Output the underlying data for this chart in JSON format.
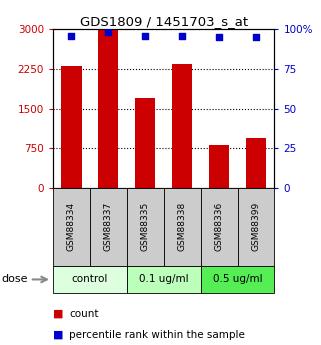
{
  "title": "GDS1809 / 1451703_s_at",
  "samples": [
    "GSM88334",
    "GSM88337",
    "GSM88335",
    "GSM88338",
    "GSM88336",
    "GSM88399"
  ],
  "counts": [
    2300,
    3000,
    1700,
    2350,
    820,
    950
  ],
  "percentiles": [
    96,
    98,
    96,
    96,
    95,
    95
  ],
  "dose_groups": [
    {
      "label": "control",
      "cols": [
        0,
        1
      ],
      "color": "#ddffdd"
    },
    {
      "label": "0.1 ug/ml",
      "cols": [
        2,
        3
      ],
      "color": "#bbffbb"
    },
    {
      "label": "0.5 ug/ml",
      "cols": [
        4,
        5
      ],
      "color": "#55ee55"
    }
  ],
  "bar_color": "#cc0000",
  "dot_color": "#0000cc",
  "ylim_left": [
    0,
    3000
  ],
  "ylim_right": [
    0,
    100
  ],
  "yticks_left": [
    0,
    750,
    1500,
    2250,
    3000
  ],
  "yticks_right": [
    0,
    25,
    50,
    75,
    100
  ],
  "ytick_labels_left": [
    "0",
    "750",
    "1500",
    "2250",
    "3000"
  ],
  "ytick_labels_right": [
    "0",
    "25",
    "50",
    "75",
    "100%"
  ],
  "grid_values": [
    750,
    1500,
    2250
  ],
  "left_tick_color": "#cc0000",
  "right_tick_color": "#0000cc",
  "sample_box_color": "#cccccc",
  "dose_label": "dose",
  "legend_count_label": "count",
  "legend_percentile_label": "percentile rank within the sample"
}
